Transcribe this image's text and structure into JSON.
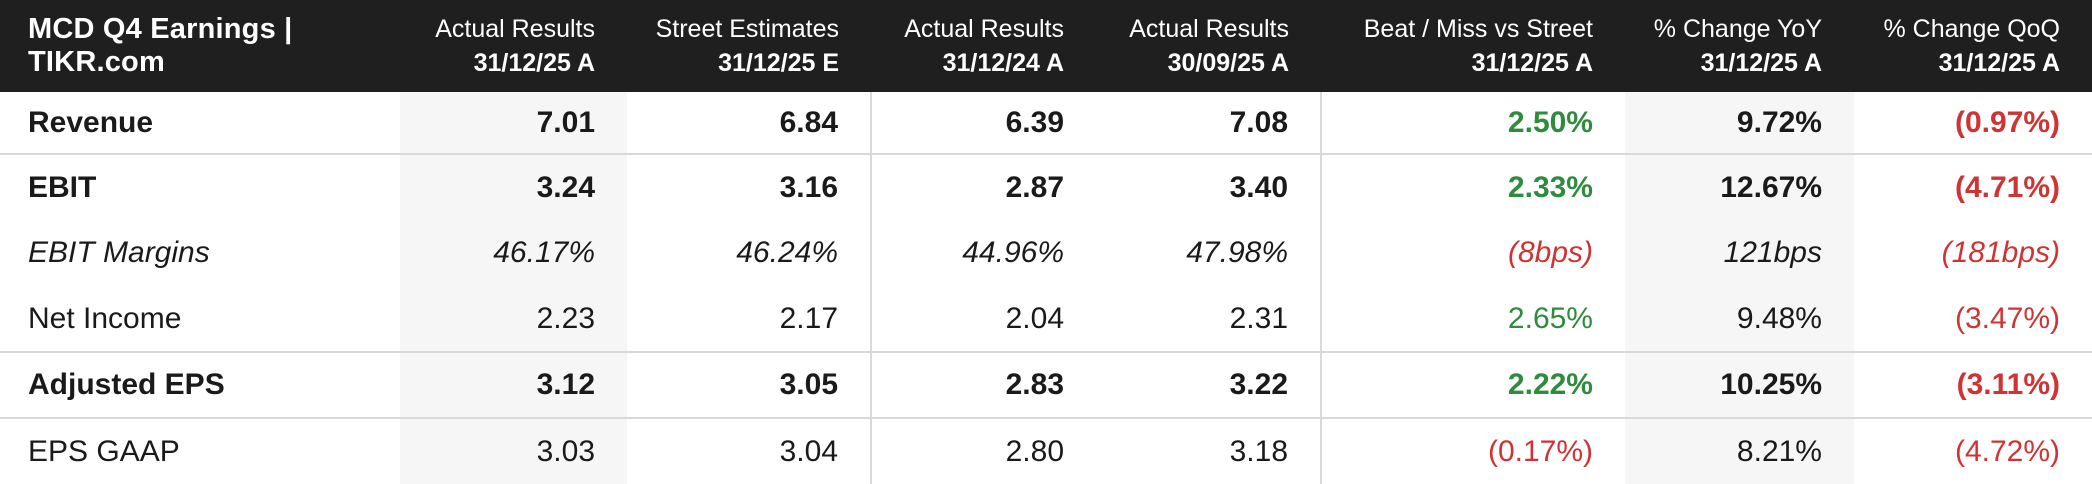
{
  "chart_data": {
    "type": "table",
    "title": "MCD Q4 Earnings | TIKR.com",
    "columns": [
      {
        "label": "Actual Results",
        "period": "31/12/25 A",
        "shaded": true
      },
      {
        "label": "Street Estimates",
        "period": "31/12/25 E",
        "shaded": false
      },
      {
        "label": "Actual Results",
        "period": "31/12/24 A",
        "shaded": false
      },
      {
        "label": "Actual Results",
        "period": "30/09/25 A",
        "shaded": false
      },
      {
        "label": "Beat / Miss vs Street",
        "period": "31/12/25 A",
        "shaded": false
      },
      {
        "label": "% Change YoY",
        "period": "31/12/25 A",
        "shaded": true
      },
      {
        "label": "% Change QoQ",
        "period": "31/12/25 A",
        "shaded": false
      }
    ],
    "rows": [
      {
        "label": "Revenue",
        "emphasis": "bold",
        "values": [
          "7.01",
          "6.84",
          "6.39",
          "7.08",
          "2.50%",
          "9.72%",
          "(0.97%)"
        ]
      },
      {
        "label": "EBIT",
        "emphasis": "bold",
        "values": [
          "3.24",
          "3.16",
          "2.87",
          "3.40",
          "2.33%",
          "12.67%",
          "(4.71%)"
        ]
      },
      {
        "label": "EBIT Margins",
        "emphasis": "italic",
        "values": [
          "46.17%",
          "46.24%",
          "44.96%",
          "47.98%",
          "(8bps)",
          "121bps",
          "(181bps)"
        ]
      },
      {
        "label": "Net Income",
        "emphasis": "regular",
        "values": [
          "2.23",
          "2.17",
          "2.04",
          "2.31",
          "2.65%",
          "9.48%",
          "(3.47%)"
        ]
      },
      {
        "label": "Adjusted EPS",
        "emphasis": "bold",
        "values": [
          "3.12",
          "3.05",
          "2.83",
          "3.22",
          "2.22%",
          "10.25%",
          "(3.11%)"
        ]
      },
      {
        "label": "EPS GAAP",
        "emphasis": "regular",
        "values": [
          "3.03",
          "3.04",
          "2.80",
          "3.18",
          "(0.17%)",
          "8.21%",
          "(4.72%)"
        ]
      }
    ]
  },
  "colors": {
    "header_bg": "#1f1f1f",
    "header_text": "#ffffff",
    "positive": "#2f8b3d",
    "negative": "#cf3333",
    "text": "#1a1a1a",
    "shaded": "#f6f6f6",
    "divider": "#d9d9d9"
  }
}
